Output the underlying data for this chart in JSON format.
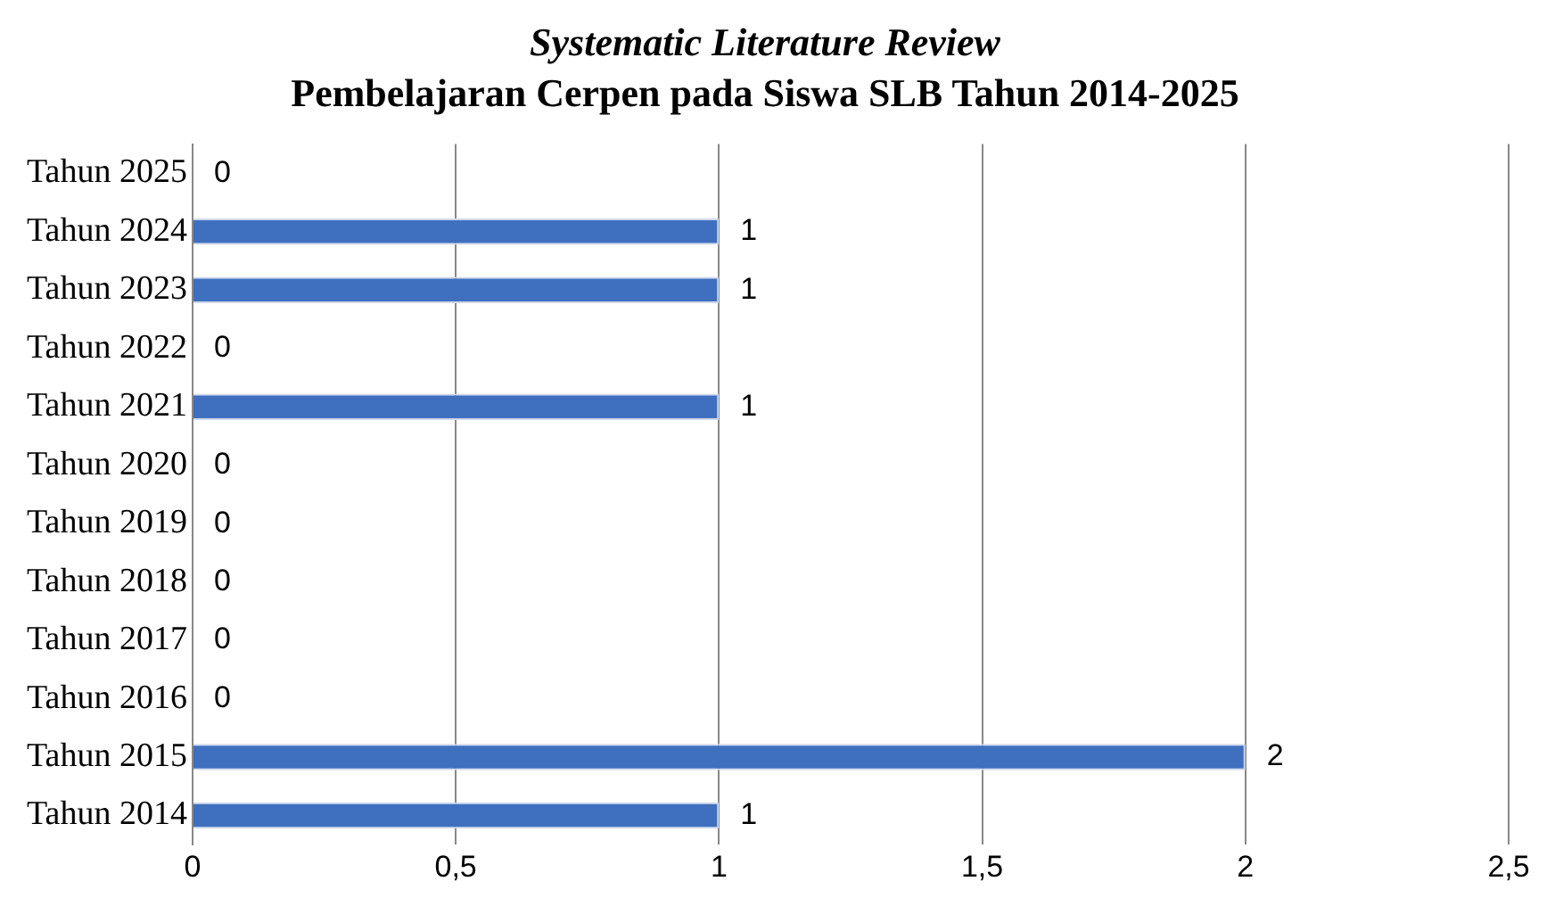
{
  "chart_data": {
    "type": "bar",
    "orientation": "horizontal",
    "title": "Systematic Literature Review",
    "subtitle": "Pembelajaran Cerpen pada Siswa SLB Tahun 2014-2025",
    "categories": [
      "Tahun 2025",
      "Tahun 2024",
      "Tahun 2023",
      "Tahun 2022",
      "Tahun 2021",
      "Tahun 2020",
      "Tahun 2019",
      "Tahun 2018",
      "Tahun 2017",
      "Tahun 2016",
      "Tahun 2015",
      "Tahun 2014"
    ],
    "values": [
      0,
      1,
      1,
      0,
      1,
      0,
      0,
      0,
      0,
      0,
      2,
      1
    ],
    "color": "#3f6fbf",
    "xlim": [
      0,
      2.5
    ],
    "xticks": [
      0,
      {
        "value": 0.5,
        "label": "0,5"
      },
      1,
      {
        "value": 1.5,
        "label": "1,5"
      },
      2,
      {
        "value": 2.5,
        "label": "2,5"
      }
    ],
    "grid": "x",
    "data_labels": true,
    "legend": false
  }
}
